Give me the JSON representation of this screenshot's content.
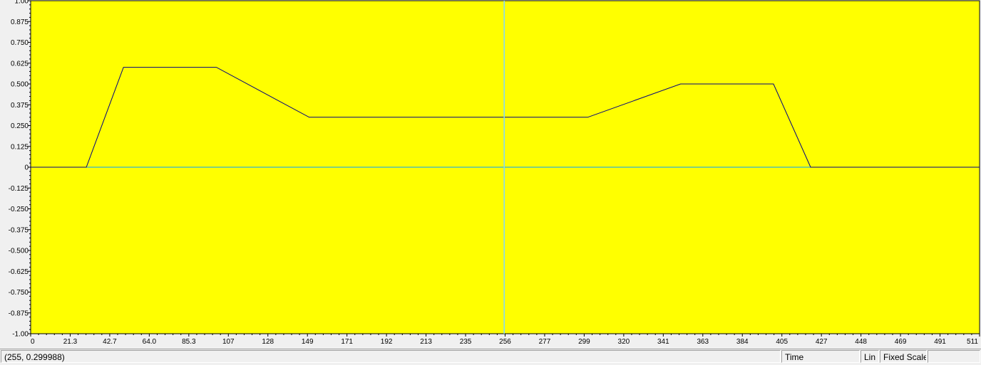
{
  "chart_data": {
    "type": "line",
    "title": "",
    "xlabel": "",
    "ylabel": "",
    "xlim": [
      0,
      511
    ],
    "ylim": [
      -1.0,
      1.0
    ],
    "x_ticks": [
      "0",
      "21.3",
      "42.7",
      "64.0",
      "85.3",
      "107",
      "128",
      "149",
      "171",
      "192",
      "213",
      "235",
      "256",
      "277",
      "299",
      "320",
      "341",
      "363",
      "384",
      "405",
      "427",
      "448",
      "469",
      "491",
      "511"
    ],
    "y_ticks": [
      "1.00",
      "0.875",
      "0.750",
      "0.625",
      "0.500",
      "0.375",
      "0.250",
      "0.125",
      "0",
      "-0.125",
      "-0.250",
      "-0.375",
      "-0.500",
      "-0.625",
      "-0.750",
      "-0.875",
      "-1.00"
    ],
    "series": [
      {
        "x": [
          0,
          30,
          50,
          100,
          150,
          300,
          350,
          400,
          420,
          511
        ],
        "y": [
          0,
          0,
          0.6,
          0.6,
          0.3,
          0.3,
          0.5,
          0.5,
          0,
          0
        ]
      }
    ],
    "cursor_x": 255,
    "grid": false,
    "legend": "none"
  },
  "colors": {
    "plot_background": "#ffff00",
    "trace": "#000080",
    "zero_line": "#00a0ff",
    "cursor": "#80d8ff"
  },
  "status_bar": {
    "coordinates": "(255, 0.299988)",
    "domain": "Time",
    "scale": "Lin",
    "mode": "Fixed Scale",
    "extra": ""
  }
}
